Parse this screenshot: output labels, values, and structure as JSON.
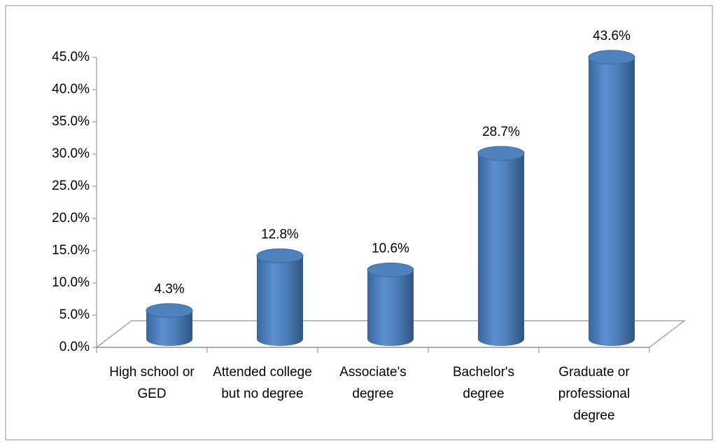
{
  "chart_data": {
    "type": "bar3d",
    "categories": [
      "High school or GED",
      "Attended college but no degree",
      "Associate's degree",
      "Bachelor's degree",
      "Graduate or professional degree"
    ],
    "values": [
      4.3,
      12.8,
      10.6,
      28.7,
      43.6
    ],
    "value_labels": [
      "4.3%",
      "12.8%",
      "10.6%",
      "28.7%",
      "43.6%"
    ],
    "color": "#4f81bd",
    "ylim": [
      0,
      45
    ],
    "yticks": [
      {
        "value": 0,
        "label": "0.0%"
      },
      {
        "value": 5,
        "label": "5.0%"
      },
      {
        "value": 10,
        "label": "10.0%"
      },
      {
        "value": 15,
        "label": "15.0%"
      },
      {
        "value": 20,
        "label": "20.0%"
      },
      {
        "value": 25,
        "label": "25.0%"
      },
      {
        "value": 30,
        "label": "30.0%"
      },
      {
        "value": 35,
        "label": "35.0%"
      },
      {
        "value": 40,
        "label": "40.0%"
      },
      {
        "value": 45,
        "label": "45.0%"
      }
    ],
    "grid": false
  }
}
